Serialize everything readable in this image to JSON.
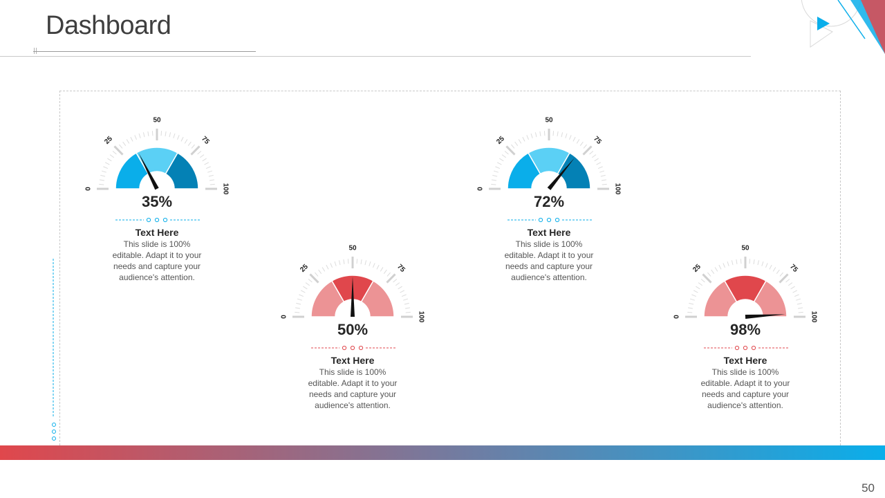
{
  "slide": {
    "title": "Dashboard",
    "page_number": "50"
  },
  "colors": {
    "blue_light": "#5bd0f5",
    "blue_mid": "#0aaeea",
    "blue_dark": "#0481b5",
    "red_light": "#ec9395",
    "red_mid": "#e0474c",
    "band_left": "#e0474c",
    "band_right": "#0aaeea"
  },
  "scale_labels": [
    "0",
    "25",
    "50",
    "75",
    "100"
  ],
  "gauges": [
    {
      "value": 35,
      "label": "35%",
      "heading": "Text Here",
      "description": "This slide is 100% editable. Adapt it to your needs and capture your audience's attention.",
      "theme": "blue"
    },
    {
      "value": 50,
      "label": "50%",
      "heading": "Text Here",
      "description": "This slide is 100% editable. Adapt it to your needs and capture your audience's attention.",
      "theme": "red"
    },
    {
      "value": 72,
      "label": "72%",
      "heading": "Text Here",
      "description": "This slide is 100% editable. Adapt it to your needs and capture your audience's attention.",
      "theme": "blue"
    },
    {
      "value": 98,
      "label": "98%",
      "heading": "Text Here",
      "description": "This slide is 100% editable. Adapt it to your needs and capture your audience's attention.",
      "theme": "red"
    }
  ]
}
